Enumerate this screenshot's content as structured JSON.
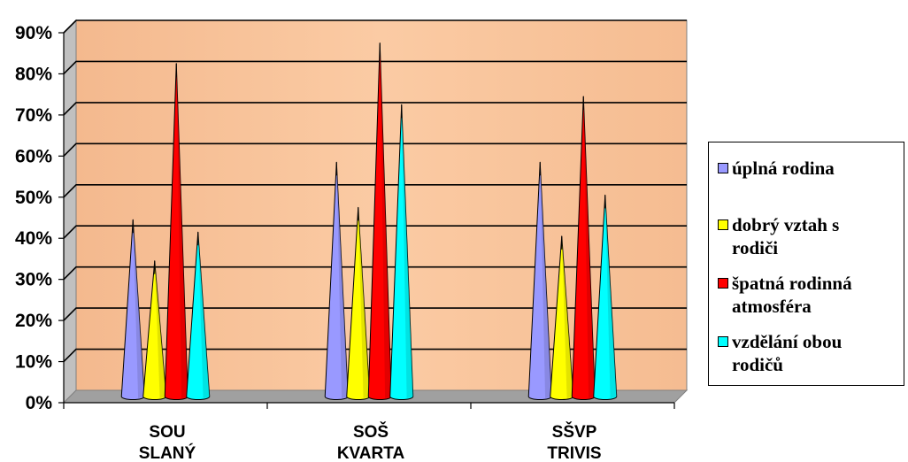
{
  "chart_data": {
    "type": "bar",
    "bar_shape": "cone",
    "categories": [
      "SOU SLANÝ",
      "SOŠ KVARTA",
      "SŠVP TRIVIS"
    ],
    "category_lines": [
      [
        "SOU",
        "SLANÝ"
      ],
      [
        "SOŠ",
        "KVARTA"
      ],
      [
        "SŠVP",
        "TRIVIS"
      ]
    ],
    "series": [
      {
        "name": "úplná rodina",
        "color": "#9999ff",
        "values": [
          43,
          57,
          57
        ]
      },
      {
        "name": "dobrý vztah s rodiči",
        "color": "#ffff00",
        "values": [
          33,
          46,
          39
        ]
      },
      {
        "name": "špatná rodinná atmosféra",
        "color": "#ff0000",
        "values": [
          81,
          86,
          73
        ]
      },
      {
        "name": "vzdělání obou rodičů",
        "color": "#00ffff",
        "values": [
          40,
          71,
          49
        ]
      }
    ],
    "ylim": [
      0,
      90
    ],
    "y_ticks": [
      {
        "value": 0,
        "label": "0%"
      },
      {
        "value": 10,
        "label": "10%"
      },
      {
        "value": 20,
        "label": "20%"
      },
      {
        "value": 30,
        "label": "30%"
      },
      {
        "value": 40,
        "label": "40%"
      },
      {
        "value": 50,
        "label": "50%"
      },
      {
        "value": 60,
        "label": "60%"
      },
      {
        "value": 70,
        "label": "70%"
      },
      {
        "value": 80,
        "label": "80%"
      },
      {
        "value": 90,
        "label": "90%"
      }
    ],
    "title": "",
    "xlabel": "",
    "ylabel": "",
    "grid": true,
    "legend_position": "right",
    "plot_background": "#f9c49c",
    "wall_side_color": "#c0c0c0"
  }
}
